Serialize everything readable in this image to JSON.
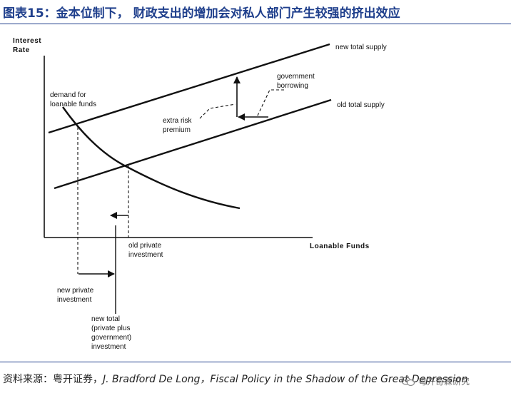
{
  "title": "图表15：金本位制下， 财政支出的增加会对私人部门产生较强的挤出效应",
  "diagram": {
    "y_axis_label_line1": "Interest",
    "y_axis_label_line2": "Rate",
    "x_axis_label": "Loanable Funds",
    "demand_label_line1": "demand for",
    "demand_label_line2": "loanable funds",
    "new_supply_label": "new total supply",
    "old_supply_label": "old total supply",
    "gov_borrowing_line1": "government",
    "gov_borrowing_line2": "borrowing",
    "risk_premium_line1": "extra risk",
    "risk_premium_line2": "premium",
    "old_private_line1": "old private",
    "old_private_line2": "investment",
    "new_private_line1": "new private",
    "new_private_line2": "investment",
    "new_total_line1": "new total",
    "new_total_line2": "(private plus",
    "new_total_line3": "government)",
    "new_total_line4": "investment"
  },
  "source": {
    "prefix": "资料来源：粤开证券，",
    "citation": "J. Bradford De Long，Fiscal Policy in the Shadow of the Great Depression"
  },
  "watermark": {
    "text": "粤开奇霖研究",
    "icon": "wechat-icon"
  },
  "colors": {
    "title": "#1f3f8c",
    "rule": "#1f3f8c",
    "line": "#111111"
  }
}
